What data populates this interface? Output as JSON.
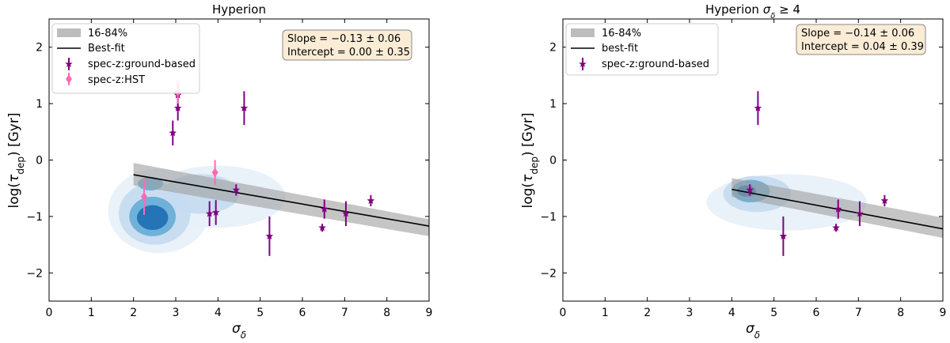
{
  "chart_data": [
    {
      "type": "scatter",
      "title": "Hyperion",
      "xlabel": "σ_δ",
      "ylabel": "log(τ_dep) [Gyr]",
      "xlim": [
        0,
        9
      ],
      "ylim": [
        -2.5,
        2.5
      ],
      "xticks": [
        "0",
        "1",
        "2",
        "3",
        "4",
        "5",
        "6",
        "7",
        "8",
        "9"
      ],
      "yticks": [
        "−2",
        "−1",
        "0",
        "1",
        "2"
      ],
      "legend": [
        "16-84%",
        "Best-fit",
        "spec-z:ground-based",
        "spec-z:HST"
      ],
      "stats": [
        "Slope = −0.13 ± 0.06",
        "Intercept = 0.00 ± 0.35"
      ],
      "fit": {
        "slope": -0.13,
        "intercept": 0.0,
        "x_range": [
          2.0,
          9.0
        ]
      },
      "band": {
        "x": [
          2.0,
          9.0
        ],
        "upper": [
          -0.05,
          -1.05
        ],
        "lower": [
          -0.45,
          -1.35
        ]
      },
      "series": [
        {
          "name": "spec-z:ground-based",
          "color": "#800080",
          "marker": "star",
          "points": [
            {
              "x": 2.93,
              "y": 0.48,
              "err": 0.22
            },
            {
              "x": 3.05,
              "y": 0.92,
              "err": 0.22
            },
            {
              "x": 3.05,
              "y": 1.15,
              "err": 0.22
            },
            {
              "x": 3.8,
              "y": -0.95,
              "err": 0.22
            },
            {
              "x": 3.95,
              "y": -0.93,
              "err": 0.22
            },
            {
              "x": 4.43,
              "y": -0.53,
              "err": 0.1
            },
            {
              "x": 4.62,
              "y": 0.92,
              "err": 0.3
            },
            {
              "x": 5.22,
              "y": -1.35,
              "err": 0.35
            },
            {
              "x": 6.47,
              "y": -1.2,
              "err": 0.07
            },
            {
              "x": 6.52,
              "y": -0.87,
              "err": 0.17
            },
            {
              "x": 7.03,
              "y": -0.95,
              "err": 0.22
            },
            {
              "x": 7.62,
              "y": -0.72,
              "err": 0.1
            }
          ]
        },
        {
          "name": "spec-z:HST",
          "color": "#ff69b4",
          "marker": "diamond",
          "points": [
            {
              "x": 2.25,
              "y": -0.65,
              "err": 0.32
            },
            {
              "x": 3.05,
              "y": 1.2,
              "err": 0.2
            },
            {
              "x": 3.93,
              "y": -0.22,
              "err": 0.22
            }
          ]
        }
      ],
      "density_blobs": [
        {
          "cx": 2.6,
          "cy": -0.9,
          "rx": 1.2,
          "ry": 0.75,
          "level": 1
        },
        {
          "cx": 4.0,
          "cy": -0.65,
          "rx": 1.6,
          "ry": 0.55,
          "level": 1
        },
        {
          "cx": 2.5,
          "cy": -0.95,
          "rx": 0.85,
          "ry": 0.55,
          "level": 2
        },
        {
          "cx": 3.6,
          "cy": -0.6,
          "rx": 0.9,
          "ry": 0.35,
          "level": 2
        },
        {
          "cx": 2.45,
          "cy": -1.0,
          "rx": 0.55,
          "ry": 0.35,
          "level": 3
        },
        {
          "cx": 2.4,
          "cy": -0.42,
          "rx": 0.3,
          "ry": 0.12,
          "level": 3
        },
        {
          "cx": 2.45,
          "cy": -1.02,
          "rx": 0.37,
          "ry": 0.22,
          "level": 4
        }
      ]
    },
    {
      "type": "scatter",
      "title": "Hyperion σ_δ ≥ 4",
      "xlabel": "σ_δ",
      "ylabel": "log(τ_dep) [Gyr]",
      "xlim": [
        0,
        9
      ],
      "ylim": [
        -2.5,
        2.5
      ],
      "xticks": [
        "0",
        "1",
        "2",
        "3",
        "4",
        "5",
        "6",
        "7",
        "8",
        "9"
      ],
      "yticks": [
        "−2",
        "−1",
        "0",
        "1",
        "2"
      ],
      "legend": [
        "16-84%",
        "best-fit",
        "spec-z:ground-based"
      ],
      "stats": [
        "Slope = −0.14 ± 0.06",
        "Intercept = 0.04 ± 0.39"
      ],
      "fit": {
        "slope": -0.14,
        "intercept": 0.04,
        "x_range": [
          4.0,
          9.0
        ]
      },
      "band": {
        "x": [
          4.0,
          9.0
        ],
        "upper": [
          -0.32,
          -1.02
        ],
        "lower": [
          -0.65,
          -1.38
        ]
      },
      "series": [
        {
          "name": "spec-z:ground-based",
          "color": "#800080",
          "marker": "star",
          "points": [
            {
              "x": 4.43,
              "y": -0.53,
              "err": 0.1
            },
            {
              "x": 4.62,
              "y": 0.92,
              "err": 0.3
            },
            {
              "x": 5.22,
              "y": -1.35,
              "err": 0.35
            },
            {
              "x": 6.47,
              "y": -1.2,
              "err": 0.07
            },
            {
              "x": 6.52,
              "y": -0.87,
              "err": 0.17
            },
            {
              "x": 7.03,
              "y": -0.95,
              "err": 0.22
            },
            {
              "x": 7.62,
              "y": -0.72,
              "err": 0.1
            }
          ]
        }
      ],
      "density_blobs": [
        {
          "cx": 5.3,
          "cy": -0.75,
          "rx": 1.9,
          "ry": 0.5,
          "level": 1
        },
        {
          "cx": 4.6,
          "cy": -0.6,
          "rx": 0.8,
          "ry": 0.32,
          "level": 2
        },
        {
          "cx": 4.45,
          "cy": -0.55,
          "rx": 0.45,
          "ry": 0.2,
          "level": 3
        },
        {
          "cx": 4.35,
          "cy": -0.55,
          "rx": 0.22,
          "ry": 0.1,
          "level": 4
        }
      ]
    }
  ],
  "colors": {
    "density": [
      "#e8f0f9",
      "#c6dbef",
      "#6aaed6",
      "#2171b5"
    ],
    "band": "#9e9e9e",
    "fit_line": "#000000",
    "stats_bg": "#fbecd6",
    "stats_border": "#888888"
  }
}
